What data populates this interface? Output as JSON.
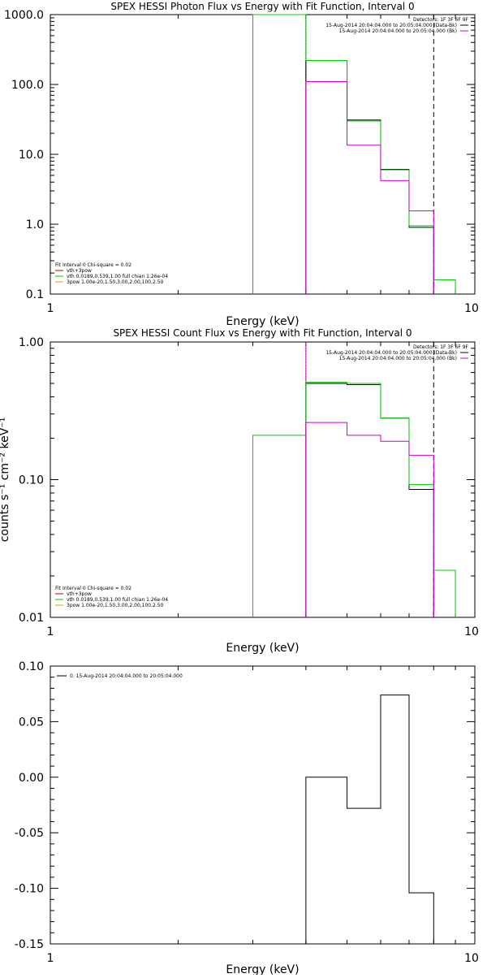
{
  "chart_data": [
    {
      "type": "line",
      "title": "SPEX HESSI Photon Flux vs Energy with Fit Function, Interval 0",
      "xlabel": "Energy (keV)",
      "ylabel": "",
      "xlog": true,
      "ylog": true,
      "xlim": [
        1,
        10
      ],
      "ylim": [
        0.1,
        1000
      ],
      "x_ticks": [
        "1",
        "10"
      ],
      "y_ticks": [
        "0.1",
        "1.0",
        "10.0",
        "100.0",
        "1000.0"
      ],
      "vlines": [
        {
          "x": 3.0,
          "style": "solid",
          "color": "#00cc00"
        },
        {
          "x": 4.0,
          "style": "dotted",
          "color": "#000000"
        },
        {
          "x": 4.0,
          "style": "solid",
          "color": "#cc00cc"
        },
        {
          "x": 8.0,
          "style": "dashed",
          "color": "#000000"
        }
      ],
      "series": [
        {
          "color": "#000000",
          "bin_edges": [
            4.0,
            5.0,
            6.0,
            7.0,
            8.0
          ],
          "values": [
            220,
            31,
            6.1,
            0.9
          ]
        },
        {
          "color": "#00cc00",
          "bin_edges": [
            3.0,
            4.0,
            5.0,
            6.0,
            7.0,
            8.0,
            9.0
          ],
          "values": [
            1000,
            220,
            30,
            6.0,
            0.95,
            0.16
          ]
        },
        {
          "color": "#cc00cc",
          "bin_edges": [
            4.0,
            5.0,
            6.0,
            7.0,
            8.0
          ],
          "values": [
            110,
            13.5,
            4.2,
            1.55
          ]
        }
      ],
      "legend_top": {
        "header": "Detectors: 1F 3F 6F 9F",
        "entries": [
          {
            "text": "15-Aug-2014 20:04:04.000 to 20:05:04.000 (Data-Bk)",
            "color": "#000000"
          },
          {
            "text": "15-Aug-2014 20:04:04.000 to 20:05:04.000 (Bk)",
            "color": "#cc00cc"
          }
        ]
      },
      "legend_bottom": {
        "header": "Fit Interval 0   Chi-square = 0.02",
        "entries": [
          {
            "text": "vth+3pow",
            "color": "#cc0000"
          },
          {
            "text": "vth 0.0189,0.539,1.00  full chian 1.26e-04",
            "color": "#00cc00"
          },
          {
            "text": "3pow 1.00e-20,1.50,3.00,2.00,100,2.50",
            "color": "#ccaa00"
          }
        ]
      }
    },
    {
      "type": "line",
      "title": "SPEX HESSI Count Flux vs Energy with Fit Function, Interval 0",
      "xlabel": "Energy (keV)",
      "ylabel": "counts s⁻¹ cm⁻² keV⁻¹",
      "xlog": true,
      "ylog": true,
      "xlim": [
        1,
        10
      ],
      "ylim": [
        0.01,
        1.0
      ],
      "x_ticks": [
        "1",
        "10"
      ],
      "y_ticks": [
        "0.01",
        "0.10",
        "1.00"
      ],
      "vlines": [
        {
          "x": 4.0,
          "style": "dotted",
          "color": "#000000"
        },
        {
          "x": 4.0,
          "style": "solid",
          "color": "#cc00cc"
        },
        {
          "x": 8.0,
          "style": "dashed",
          "color": "#000000"
        }
      ],
      "series": [
        {
          "color": "#000000",
          "bin_edges": [
            4.0,
            5.0,
            6.0,
            7.0,
            8.0
          ],
          "values": [
            0.5,
            0.49,
            0.28,
            0.085
          ]
        },
        {
          "color": "#00cc00",
          "bin_edges": [
            3.0,
            4.0,
            5.0,
            6.0,
            7.0,
            8.0,
            9.0
          ],
          "values": [
            0.21,
            0.51,
            0.5,
            0.28,
            0.092,
            0.022
          ]
        },
        {
          "color": "#cc00cc",
          "bin_edges": [
            4.0,
            5.0,
            6.0,
            7.0,
            8.0
          ],
          "values": [
            0.26,
            0.21,
            0.19,
            0.15
          ]
        }
      ],
      "legend_top": {
        "header": "Detectors: 1F 3F 6F 9F",
        "entries": [
          {
            "text": "15-Aug-2014 20:04:04.000 to 20:05:04.000 (Data-Bk)",
            "color": "#000000"
          },
          {
            "text": "15-Aug-2014 20:04:04.000 to 20:05:04.000 (Bk)",
            "color": "#cc00cc"
          }
        ]
      },
      "legend_bottom": {
        "header": "Fit Interval 0   Chi-square = 0.02",
        "entries": [
          {
            "text": "vth+3pow",
            "color": "#cc0000"
          },
          {
            "text": "vth 0.0189,0.539,1.00  full chian 1.26e-04",
            "color": "#00cc00"
          },
          {
            "text": "3pow 1.00e-20,1.50,3.00,2.00,100,2.50",
            "color": "#ccaa00"
          }
        ]
      }
    },
    {
      "type": "line",
      "title": "",
      "xlabel": "Energy (keV)",
      "ylabel": "",
      "xlog": true,
      "ylog": false,
      "xlim": [
        1,
        10
      ],
      "ylim": [
        -0.15,
        0.1
      ],
      "x_ticks": [
        "1",
        "10"
      ],
      "y_ticks": [
        "-0.15",
        "-0.10",
        "-0.05",
        "0.00",
        "0.05",
        "0.10"
      ],
      "vlines": [],
      "series": [
        {
          "color": "#000000",
          "bin_edges": [
            4.0,
            5.0,
            6.0,
            7.0,
            8.0
          ],
          "values": [
            0.0,
            -0.028,
            0.074,
            -0.104
          ]
        }
      ],
      "legend_top": {
        "header": "",
        "entries": [
          {
            "text": "0. 15-Aug-2014 20:04:04.000 to 20:05:04.000",
            "color": "#000000"
          }
        ]
      },
      "legend_bottom": null
    }
  ]
}
